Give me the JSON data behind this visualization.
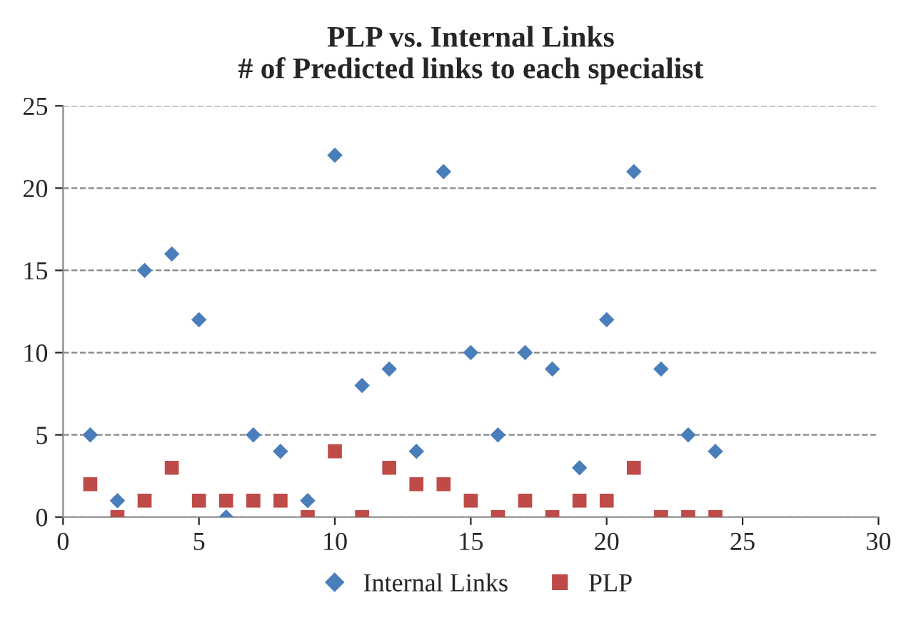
{
  "chart_data": {
    "type": "scatter",
    "title": "PLP vs. Internal Links\n# of Predicted links to each specialist",
    "x": [
      1,
      2,
      3,
      4,
      5,
      6,
      7,
      8,
      9,
      10,
      11,
      12,
      13,
      14,
      15,
      16,
      17,
      18,
      19,
      20,
      21,
      22,
      23,
      24
    ],
    "series": [
      {
        "name": "Internal Links",
        "color": "#4a7ebb",
        "marker": "diamond",
        "values": [
          5,
          1,
          15,
          16,
          12,
          0,
          5,
          4,
          1,
          22,
          8,
          9,
          4,
          21,
          10,
          5,
          10,
          9,
          3,
          12,
          21,
          9,
          5,
          4
        ]
      },
      {
        "name": "PLP",
        "color": "#be4b48",
        "marker": "square",
        "values": [
          2,
          0,
          1,
          3,
          1,
          1,
          1,
          1,
          0,
          4,
          0,
          3,
          2,
          2,
          1,
          0,
          1,
          0,
          1,
          1,
          3,
          0,
          0,
          0
        ]
      }
    ],
    "xlim": [
      0,
      30
    ],
    "xticks": [
      0,
      5,
      10,
      15,
      20,
      25,
      30
    ],
    "ylim": [
      0,
      25
    ],
    "yticks": [
      0,
      5,
      10,
      15,
      20,
      25
    ],
    "grid": "y",
    "legend": "bottom"
  }
}
